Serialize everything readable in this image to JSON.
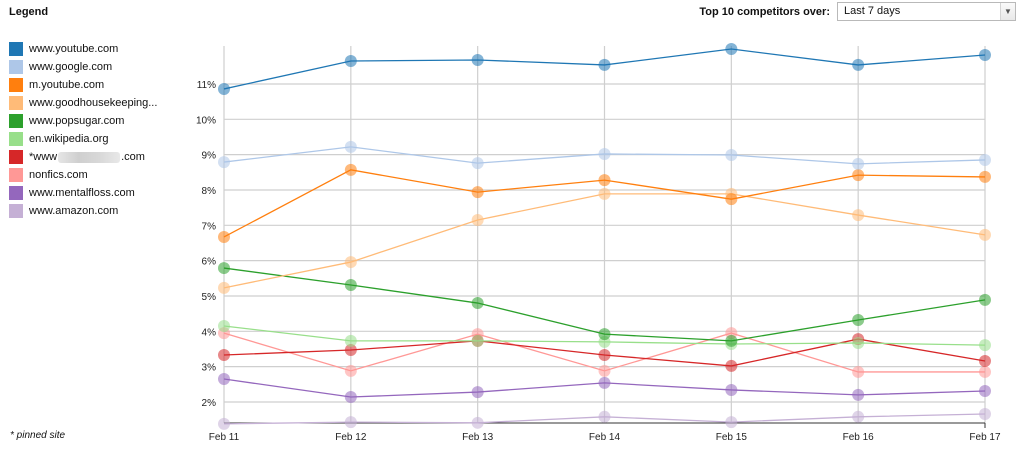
{
  "legend": {
    "title": "Legend",
    "items": [
      {
        "label": "www.youtube.com",
        "color": "#1f77b4"
      },
      {
        "label": "www.google.com",
        "color": "#aec7e8"
      },
      {
        "label": "m.youtube.com",
        "color": "#ff7f0e"
      },
      {
        "label": "www.goodhousekeeping...",
        "color": "#ffbb78"
      },
      {
        "label": "www.popsugar.com",
        "color": "#2ca02c"
      },
      {
        "label": "en.wikipedia.org",
        "color": "#98df8a"
      },
      {
        "label_prefix": "*www",
        "label_suffix": ".com",
        "label_blurred": true,
        "color": "#d62728"
      },
      {
        "label": "nonfics.com",
        "color": "#ff9896"
      },
      {
        "label": "www.mentalfloss.com",
        "color": "#9467bd"
      },
      {
        "label": "www.amazon.com",
        "color": "#c5b0d5"
      }
    ],
    "footnote": "* pinned site"
  },
  "controls": {
    "label": "Top 10 competitors over:",
    "period_selected": "Last 7 days",
    "dropdown_icon": "chevron-down-icon"
  },
  "chart_data": {
    "type": "line",
    "title": "",
    "xlabel": "",
    "ylabel": "",
    "x": [
      "Feb 11",
      "Feb 12",
      "Feb 13",
      "Feb 14",
      "Feb 15",
      "Feb 16",
      "Feb 17"
    ],
    "y_ticks": [
      "2%",
      "3%",
      "4%",
      "5%",
      "6%",
      "7%",
      "8%",
      "9%",
      "10%",
      "11%"
    ],
    "ylim": [
      1.38,
      12.3
    ],
    "grid": true,
    "legend_position": "left",
    "series": [
      {
        "name": "www.youtube.com",
        "color": "#1f77b4",
        "values": [
          10.86,
          11.65,
          11.68,
          11.54,
          11.99,
          11.54,
          11.82
        ]
      },
      {
        "name": "www.google.com",
        "color": "#aec7e8",
        "values": [
          8.79,
          9.22,
          8.76,
          9.02,
          8.99,
          8.74,
          8.85
        ]
      },
      {
        "name": "m.youtube.com",
        "color": "#ff7f0e",
        "values": [
          6.67,
          8.57,
          7.94,
          8.28,
          7.74,
          8.42,
          8.37
        ]
      },
      {
        "name": "www.goodhousekeeping...",
        "color": "#ffbb78",
        "values": [
          5.23,
          5.96,
          7.15,
          7.89,
          7.89,
          7.29,
          6.73
        ]
      },
      {
        "name": "www.popsugar.com",
        "color": "#2ca02c",
        "values": [
          5.79,
          5.31,
          4.8,
          3.92,
          3.73,
          4.32,
          4.89
        ]
      },
      {
        "name": "en.wikipedia.org",
        "color": "#98df8a",
        "values": [
          4.15,
          3.73,
          3.73,
          3.7,
          3.64,
          3.67,
          3.61
        ]
      },
      {
        "name": "*www[blurred].com",
        "color": "#d62728",
        "values": [
          3.33,
          3.47,
          3.73,
          3.33,
          3.02,
          3.78,
          3.16
        ]
      },
      {
        "name": "nonfics.com",
        "color": "#ff9896",
        "values": [
          3.95,
          2.88,
          3.92,
          2.88,
          3.95,
          2.85,
          2.85
        ]
      },
      {
        "name": "www.mentalfloss.com",
        "color": "#9467bd",
        "values": [
          2.65,
          2.14,
          2.28,
          2.54,
          2.34,
          2.2,
          2.31
        ]
      },
      {
        "name": "www.amazon.com",
        "color": "#c5b0d5",
        "values": [
          1.38,
          1.43,
          1.41,
          1.58,
          1.43,
          1.58,
          1.66
        ]
      }
    ]
  }
}
